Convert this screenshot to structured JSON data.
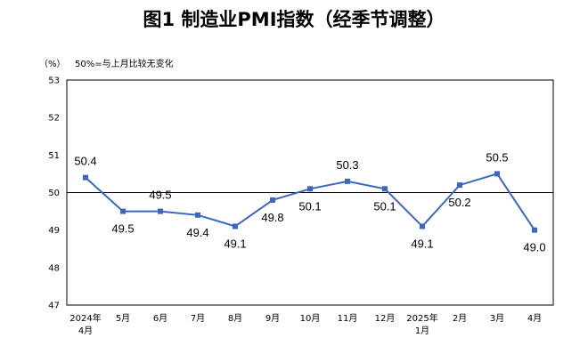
{
  "chart_data": {
    "type": "line",
    "title": "图1  制造业PMI指数（经季节调整）",
    "unit": "（%）",
    "note": "50%=与上月比较无变化",
    "categories": [
      [
        "2024年",
        "4月"
      ],
      [
        "5月"
      ],
      [
        "6月"
      ],
      [
        "7月"
      ],
      [
        "8月"
      ],
      [
        "9月"
      ],
      [
        "10月"
      ],
      [
        "11月"
      ],
      [
        "12月"
      ],
      [
        "2025年",
        "1月"
      ],
      [
        "2月"
      ],
      [
        "3月"
      ],
      [
        "4月"
      ]
    ],
    "series": [
      {
        "values": [
          50.4,
          49.5,
          49.5,
          49.4,
          49.1,
          49.8,
          50.1,
          50.3,
          50.1,
          49.1,
          50.2,
          50.5,
          49.0
        ],
        "labels": [
          "50.4",
          "49.5",
          "49.5",
          "49.4",
          "49.1",
          "49.8",
          "50.1",
          "50.3",
          "50.1",
          "49.1",
          "50.2",
          "50.5",
          "49.0"
        ],
        "color": "#3a66c4"
      }
    ],
    "yticks": [
      "53",
      "52",
      "51",
      "50",
      "49",
      "48",
      "47"
    ],
    "ylim": [
      47,
      53
    ],
    "reference_line": 50,
    "grid": false,
    "legend": "none"
  }
}
